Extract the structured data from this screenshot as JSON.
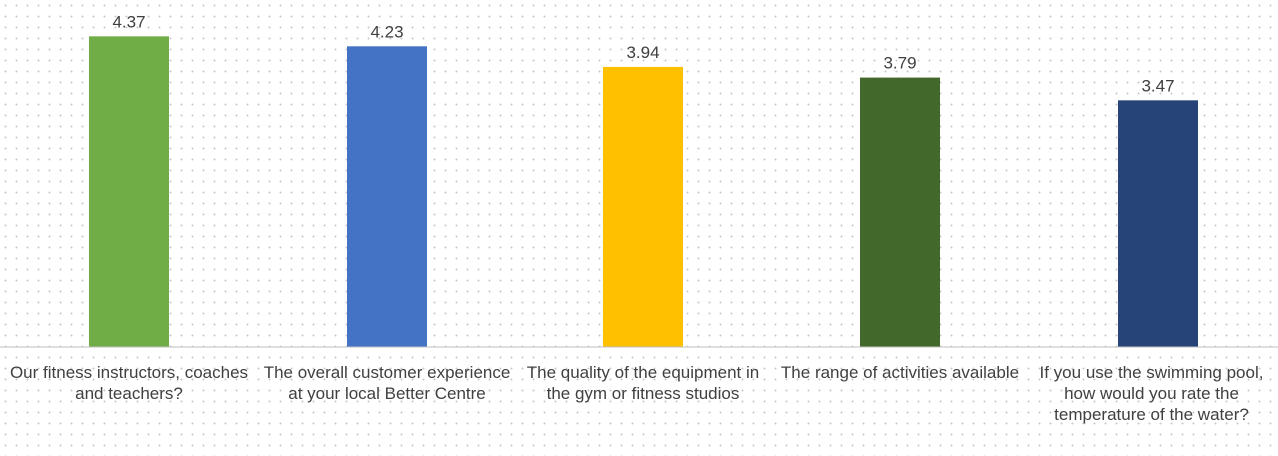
{
  "chart_data": {
    "type": "bar",
    "categories": [
      "Our fitness instructors, coaches and teachers?",
      "The overall customer experience at your local Better Centre",
      "The quality of the equipment in the gym or fitness studios",
      "The range of activities available",
      "If you use the swimming pool, how would you rate the temperature of the water?"
    ],
    "values": [
      4.37,
      4.23,
      3.94,
      3.79,
      3.47
    ],
    "value_labels": [
      "4.37",
      "4.23",
      "3.94",
      "3.79",
      "3.47"
    ],
    "colors": [
      "#70ad47",
      "#4472c4",
      "#ffc000",
      "#43682b",
      "#264478"
    ],
    "ylim": [
      0,
      4.6
    ],
    "grid": false,
    "legend": "none"
  }
}
